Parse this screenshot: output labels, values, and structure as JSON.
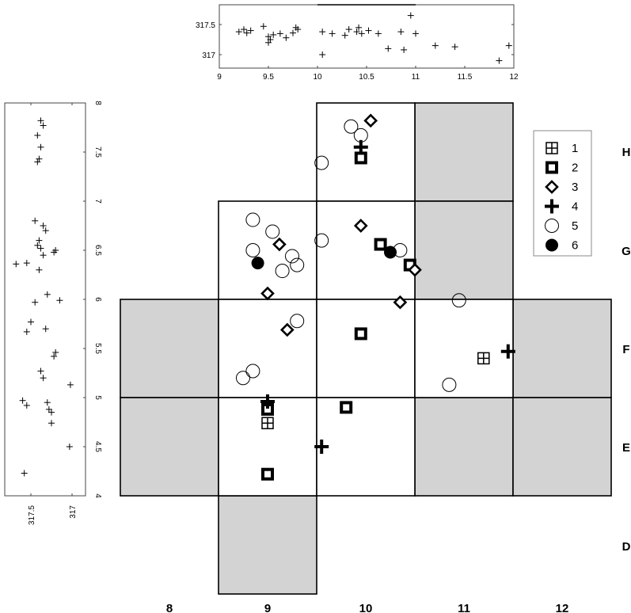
{
  "chart_data": [
    {
      "type": "scatter",
      "panel": "plan",
      "x_labels": [
        "8",
        "9",
        "10",
        "11",
        "12"
      ],
      "y_labels": [
        "D",
        "E",
        "F",
        "G",
        "H"
      ],
      "grid": {
        "open_squares": [
          {
            "col": "10",
            "row": "H"
          },
          {
            "col": "9",
            "row": "G"
          },
          {
            "col": "10",
            "row": "G"
          },
          {
            "col": "9",
            "row": "F"
          },
          {
            "col": "10",
            "row": "F"
          },
          {
            "col": "11",
            "row": "F"
          },
          {
            "col": "9",
            "row": "E"
          },
          {
            "col": "10",
            "row": "E"
          }
        ],
        "shaded_squares": [
          {
            "col": "11",
            "row": "H"
          },
          {
            "col": "11",
            "row": "G"
          },
          {
            "col": "8",
            "row": "F"
          },
          {
            "col": "12",
            "row": "F"
          },
          {
            "col": "8",
            "row": "E"
          },
          {
            "col": "11",
            "row": "E"
          },
          {
            "col": "12",
            "row": "E"
          },
          {
            "col": "9",
            "row": "D"
          }
        ]
      },
      "legend": {
        "placement": "right",
        "entries": [
          {
            "label": "1",
            "marker": "boxed-cross"
          },
          {
            "label": "2",
            "marker": "thick-square"
          },
          {
            "label": "3",
            "marker": "diamond"
          },
          {
            "label": "4",
            "marker": "bold-plus"
          },
          {
            "label": "5",
            "marker": "open-circle"
          },
          {
            "label": "6",
            "marker": "filled-circle"
          }
        ]
      },
      "series": [
        {
          "name": "1",
          "points": [
            [
              9,
              4.74
            ],
            [
              11.2,
              5.4
            ]
          ]
        },
        {
          "name": "2",
          "points": [
            [
              9.95,
              7.44
            ],
            [
              10.15,
              6.56
            ],
            [
              10.45,
              6.35
            ],
            [
              9.95,
              5.65
            ],
            [
              9.8,
              4.9
            ],
            [
              9.0,
              4.88
            ],
            [
              9.0,
              4.22
            ]
          ]
        },
        {
          "name": "3",
          "points": [
            [
              10.05,
              7.82
            ],
            [
              9.95,
              6.75
            ],
            [
              9.12,
              6.56
            ],
            [
              10.5,
              6.3
            ],
            [
              9.0,
              6.06
            ],
            [
              10.35,
              5.97
            ],
            [
              9.2,
              5.69
            ]
          ]
        },
        {
          "name": "4",
          "points": [
            [
              9.95,
              7.55
            ],
            [
              9.0,
              4.96
            ],
            [
              9.55,
              4.5
            ],
            [
              11.45,
              5.47
            ]
          ]
        },
        {
          "name": "5",
          "points": [
            [
              9.85,
              7.76
            ],
            [
              9.95,
              7.67
            ],
            [
              9.55,
              7.39
            ],
            [
              8.85,
              6.81
            ],
            [
              9.55,
              6.6
            ],
            [
              9.05,
              6.69
            ],
            [
              8.85,
              6.5
            ],
            [
              9.15,
              6.29
            ],
            [
              9.25,
              6.44
            ],
            [
              9.3,
              6.35
            ],
            [
              10.35,
              6.5
            ],
            [
              9.3,
              5.78
            ],
            [
              8.85,
              5.27
            ],
            [
              8.75,
              5.2
            ],
            [
              10.95,
              5.99
            ],
            [
              10.85,
              5.13
            ]
          ]
        },
        {
          "name": "6",
          "points": [
            [
              8.9,
              6.37
            ],
            [
              10.25,
              6.48
            ]
          ]
        }
      ]
    },
    {
      "type": "scatter",
      "panel": "top-section",
      "x_ticks": [
        "9",
        "9.5",
        "10",
        "10.5",
        "11",
        "11.5",
        "12"
      ],
      "y_ticks": [
        "317.5",
        "317"
      ],
      "xlim": [
        9,
        12
      ],
      "ylim": [
        316.75,
        317.75
      ],
      "points": [
        [
          9.2,
          317.38
        ],
        [
          9.25,
          317.42
        ],
        [
          9.28,
          317.36
        ],
        [
          9.32,
          317.4
        ],
        [
          9.45,
          317.47
        ],
        [
          9.5,
          317.3
        ],
        [
          9.5,
          317.2
        ],
        [
          9.52,
          317.25
        ],
        [
          9.55,
          317.33
        ],
        [
          9.62,
          317.35
        ],
        [
          9.68,
          317.28
        ],
        [
          9.75,
          317.36
        ],
        [
          9.78,
          317.45
        ],
        [
          9.8,
          317.42
        ],
        [
          10.05,
          317.38
        ],
        [
          10.05,
          317.0
        ],
        [
          10.15,
          317.35
        ],
        [
          10.28,
          317.32
        ],
        [
          10.32,
          317.42
        ],
        [
          10.4,
          317.38
        ],
        [
          10.42,
          317.45
        ],
        [
          10.45,
          317.35
        ],
        [
          10.52,
          317.4
        ],
        [
          10.62,
          317.35
        ],
        [
          10.72,
          317.1
        ],
        [
          10.85,
          317.38
        ],
        [
          10.88,
          317.08
        ],
        [
          10.95,
          317.65
        ],
        [
          11.0,
          317.35
        ],
        [
          11.2,
          317.15
        ],
        [
          11.4,
          317.13
        ],
        [
          11.85,
          316.9
        ],
        [
          11.95,
          317.15
        ]
      ]
    },
    {
      "type": "scatter",
      "panel": "side-section",
      "x_ticks": [
        "317.5",
        "317"
      ],
      "y_ticks": [
        "8",
        "7.5",
        "7",
        "6.5",
        "6",
        "5.5",
        "5",
        "4.5",
        "4"
      ],
      "xlim": [
        316.85,
        317.75
      ],
      "ylim": [
        4,
        8
      ],
      "points": [
        [
          317.38,
          7.82
        ],
        [
          317.35,
          7.77
        ],
        [
          317.42,
          7.67
        ],
        [
          317.38,
          7.55
        ],
        [
          317.4,
          7.43
        ],
        [
          317.42,
          7.4
        ],
        [
          317.45,
          6.8
        ],
        [
          317.35,
          6.75
        ],
        [
          317.32,
          6.7
        ],
        [
          317.4,
          6.6
        ],
        [
          317.42,
          6.55
        ],
        [
          317.38,
          6.52
        ],
        [
          317.2,
          6.5
        ],
        [
          317.22,
          6.48
        ],
        [
          317.35,
          6.45
        ],
        [
          317.55,
          6.37
        ],
        [
          317.68,
          6.36
        ],
        [
          317.4,
          6.3
        ],
        [
          317.45,
          5.97
        ],
        [
          317.3,
          6.05
        ],
        [
          317.15,
          5.99
        ],
        [
          317.5,
          5.77
        ],
        [
          317.32,
          5.7
        ],
        [
          317.55,
          5.67
        ],
        [
          317.2,
          5.46
        ],
        [
          317.22,
          5.42
        ],
        [
          317.38,
          5.27
        ],
        [
          317.35,
          5.2
        ],
        [
          317.02,
          5.13
        ],
        [
          317.6,
          4.97
        ],
        [
          317.3,
          4.95
        ],
        [
          317.55,
          4.92
        ],
        [
          317.28,
          4.88
        ],
        [
          317.25,
          4.85
        ],
        [
          317.25,
          4.74
        ],
        [
          317.03,
          4.5
        ],
        [
          317.58,
          4.23
        ]
      ]
    }
  ]
}
